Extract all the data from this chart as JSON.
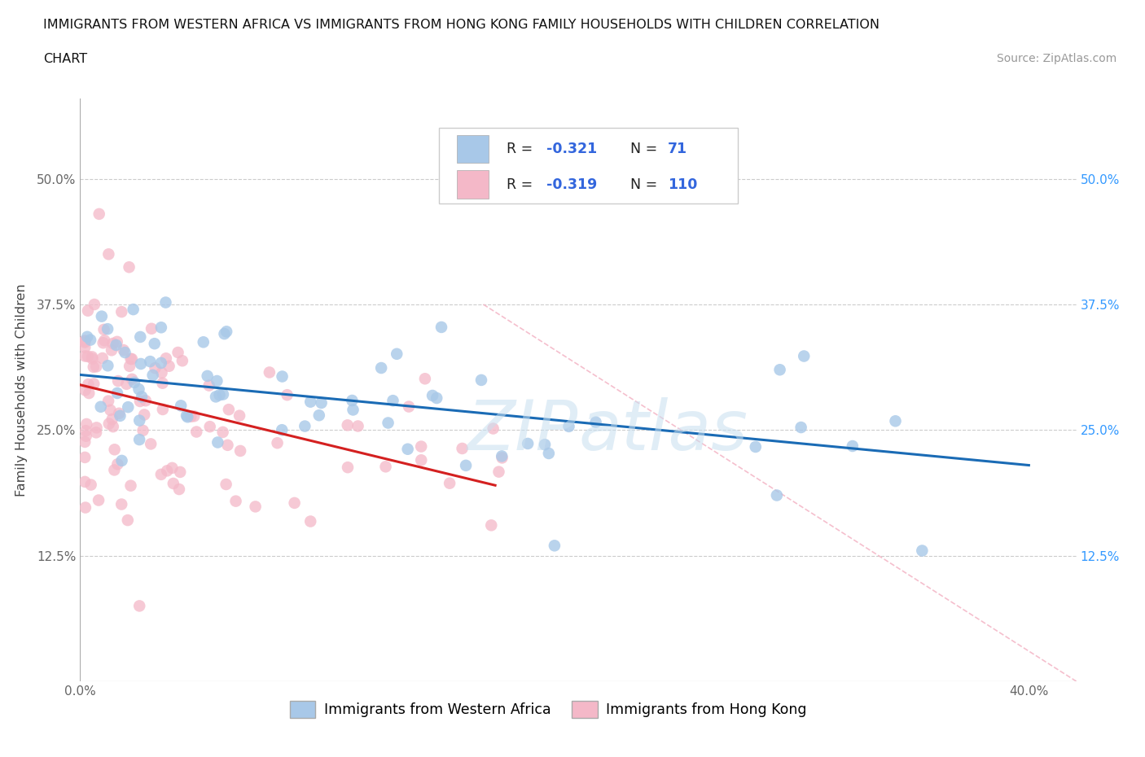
{
  "title_line1": "IMMIGRANTS FROM WESTERN AFRICA VS IMMIGRANTS FROM HONG KONG FAMILY HOUSEHOLDS WITH CHILDREN CORRELATION",
  "title_line2": "CHART",
  "source": "Source: ZipAtlas.com",
  "ylabel": "Family Households with Children",
  "xlim": [
    0.0,
    0.42
  ],
  "ylim": [
    0.0,
    0.58
  ],
  "xticks": [
    0.0,
    0.1,
    0.2,
    0.3,
    0.4
  ],
  "xticklabels": [
    "0.0%",
    "",
    "",
    "",
    "40.0%"
  ],
  "yticks": [
    0.0,
    0.125,
    0.25,
    0.375,
    0.5
  ],
  "yticklabels_left": [
    "",
    "12.5%",
    "25.0%",
    "37.5%",
    "50.0%"
  ],
  "yticklabels_right": [
    "",
    "12.5%",
    "25.0%",
    "37.5%",
    "50.0%"
  ],
  "watermark": "ZIPatlas",
  "legend_r1": "-0.321",
  "legend_n1": "71",
  "legend_r2": "-0.319",
  "legend_n2": "110",
  "color_blue": "#a8c8e8",
  "color_pink": "#f4b8c8",
  "color_blue_line": "#1a6bb5",
  "color_pink_line": "#d42020",
  "color_dashed": "#f4b8c8",
  "blue_line_x0": 0.0,
  "blue_line_y0": 0.305,
  "blue_line_x1": 0.4,
  "blue_line_y1": 0.215,
  "pink_line_x0": 0.0,
  "pink_line_y0": 0.295,
  "pink_line_x1": 0.175,
  "pink_line_y1": 0.195,
  "dash_line_x0": 0.17,
  "dash_line_y0": 0.375,
  "dash_line_x1": 0.42,
  "dash_line_y1": 0.0,
  "seed": 123
}
